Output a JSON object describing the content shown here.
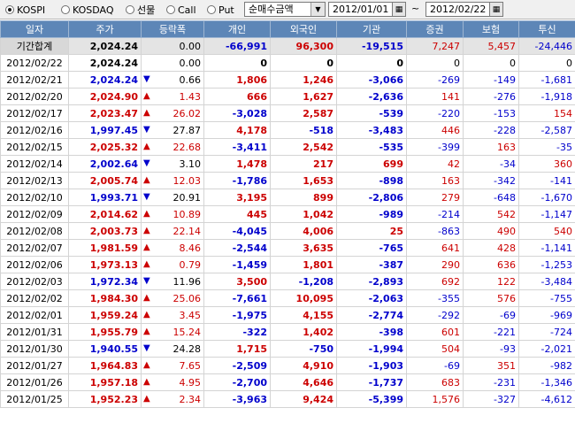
{
  "toolbar": {
    "radios": [
      {
        "label": "KOSPI",
        "checked": true
      },
      {
        "label": "KOSDAQ",
        "checked": false
      },
      {
        "label": "선물",
        "checked": false
      },
      {
        "label": "Call",
        "checked": false
      },
      {
        "label": "Put",
        "checked": false
      }
    ],
    "select_value": "순매수금액",
    "date_from": "2012/01/01",
    "date_sep": "~",
    "date_to": "2012/02/22"
  },
  "columns": [
    "일자",
    "주가",
    "등락폭",
    "개인",
    "외국인",
    "기관",
    "증권",
    "보험",
    "투신"
  ],
  "colors": {
    "header_bg": "#5d86b7",
    "up": "#cc0000",
    "down": "#0000cc"
  },
  "rows": [
    {
      "date": "기간합계",
      "price": "2,024.24",
      "dir": "none",
      "change": "0.00",
      "indiv": "-66,991",
      "foreign": "96,300",
      "inst": "-19,515",
      "sec": "7,247",
      "ins": "5,457",
      "trust": "-24,446",
      "sum": true
    },
    {
      "date": "2012/02/22",
      "price": "2,024.24",
      "dir": "none",
      "change": "0.00",
      "indiv": "0",
      "foreign": "0",
      "inst": "0",
      "sec": "0",
      "ins": "0",
      "trust": "0"
    },
    {
      "date": "2012/02/21",
      "price": "2,024.24",
      "dir": "down",
      "change": "0.66",
      "indiv": "1,806",
      "foreign": "1,246",
      "inst": "-3,066",
      "sec": "-269",
      "ins": "-149",
      "trust": "-1,681"
    },
    {
      "date": "2012/02/20",
      "price": "2,024.90",
      "dir": "up",
      "change": "1.43",
      "indiv": "666",
      "foreign": "1,627",
      "inst": "-2,636",
      "sec": "141",
      "ins": "-276",
      "trust": "-1,918"
    },
    {
      "date": "2012/02/17",
      "price": "2,023.47",
      "dir": "up",
      "change": "26.02",
      "indiv": "-3,028",
      "foreign": "2,587",
      "inst": "-539",
      "sec": "-220",
      "ins": "-153",
      "trust": "154"
    },
    {
      "date": "2012/02/16",
      "price": "1,997.45",
      "dir": "down",
      "change": "27.87",
      "indiv": "4,178",
      "foreign": "-518",
      "inst": "-3,483",
      "sec": "446",
      "ins": "-228",
      "trust": "-2,587"
    },
    {
      "date": "2012/02/15",
      "price": "2,025.32",
      "dir": "up",
      "change": "22.68",
      "indiv": "-3,411",
      "foreign": "2,542",
      "inst": "-535",
      "sec": "-399",
      "ins": "163",
      "trust": "-35"
    },
    {
      "date": "2012/02/14",
      "price": "2,002.64",
      "dir": "down",
      "change": "3.10",
      "indiv": "1,478",
      "foreign": "217",
      "inst": "699",
      "sec": "42",
      "ins": "-34",
      "trust": "360"
    },
    {
      "date": "2012/02/13",
      "price": "2,005.74",
      "dir": "up",
      "change": "12.03",
      "indiv": "-1,786",
      "foreign": "1,653",
      "inst": "-898",
      "sec": "163",
      "ins": "-342",
      "trust": "-141"
    },
    {
      "date": "2012/02/10",
      "price": "1,993.71",
      "dir": "down",
      "change": "20.91",
      "indiv": "3,195",
      "foreign": "899",
      "inst": "-2,806",
      "sec": "279",
      "ins": "-648",
      "trust": "-1,670"
    },
    {
      "date": "2012/02/09",
      "price": "2,014.62",
      "dir": "up",
      "change": "10.89",
      "indiv": "445",
      "foreign": "1,042",
      "inst": "-989",
      "sec": "-214",
      "ins": "542",
      "trust": "-1,147"
    },
    {
      "date": "2012/02/08",
      "price": "2,003.73",
      "dir": "up",
      "change": "22.14",
      "indiv": "-4,045",
      "foreign": "4,006",
      "inst": "25",
      "sec": "-863",
      "ins": "490",
      "trust": "540"
    },
    {
      "date": "2012/02/07",
      "price": "1,981.59",
      "dir": "up",
      "change": "8.46",
      "indiv": "-2,544",
      "foreign": "3,635",
      "inst": "-765",
      "sec": "641",
      "ins": "428",
      "trust": "-1,141"
    },
    {
      "date": "2012/02/06",
      "price": "1,973.13",
      "dir": "up",
      "change": "0.79",
      "indiv": "-1,459",
      "foreign": "1,801",
      "inst": "-387",
      "sec": "290",
      "ins": "636",
      "trust": "-1,253"
    },
    {
      "date": "2012/02/03",
      "price": "1,972.34",
      "dir": "down",
      "change": "11.96",
      "indiv": "3,500",
      "foreign": "-1,208",
      "inst": "-2,893",
      "sec": "692",
      "ins": "122",
      "trust": "-3,484"
    },
    {
      "date": "2012/02/02",
      "price": "1,984.30",
      "dir": "up",
      "change": "25.06",
      "indiv": "-7,661",
      "foreign": "10,095",
      "inst": "-2,063",
      "sec": "-355",
      "ins": "576",
      "trust": "-755"
    },
    {
      "date": "2012/02/01",
      "price": "1,959.24",
      "dir": "up",
      "change": "3.45",
      "indiv": "-1,975",
      "foreign": "4,155",
      "inst": "-2,774",
      "sec": "-292",
      "ins": "-69",
      "trust": "-969"
    },
    {
      "date": "2012/01/31",
      "price": "1,955.79",
      "dir": "up",
      "change": "15.24",
      "indiv": "-322",
      "foreign": "1,402",
      "inst": "-398",
      "sec": "601",
      "ins": "-221",
      "trust": "-724"
    },
    {
      "date": "2012/01/30",
      "price": "1,940.55",
      "dir": "down",
      "change": "24.28",
      "indiv": "1,715",
      "foreign": "-750",
      "inst": "-1,994",
      "sec": "504",
      "ins": "-93",
      "trust": "-2,021"
    },
    {
      "date": "2012/01/27",
      "price": "1,964.83",
      "dir": "up",
      "change": "7.65",
      "indiv": "-2,509",
      "foreign": "4,910",
      "inst": "-1,903",
      "sec": "-69",
      "ins": "351",
      "trust": "-982"
    },
    {
      "date": "2012/01/26",
      "price": "1,957.18",
      "dir": "up",
      "change": "4.95",
      "indiv": "-2,700",
      "foreign": "4,646",
      "inst": "-1,737",
      "sec": "683",
      "ins": "-231",
      "trust": "-1,346"
    },
    {
      "date": "2012/01/25",
      "price": "1,952.23",
      "dir": "up",
      "change": "2.34",
      "indiv": "-3,963",
      "foreign": "9,424",
      "inst": "-5,399",
      "sec": "1,576",
      "ins": "-327",
      "trust": "-4,612"
    }
  ]
}
